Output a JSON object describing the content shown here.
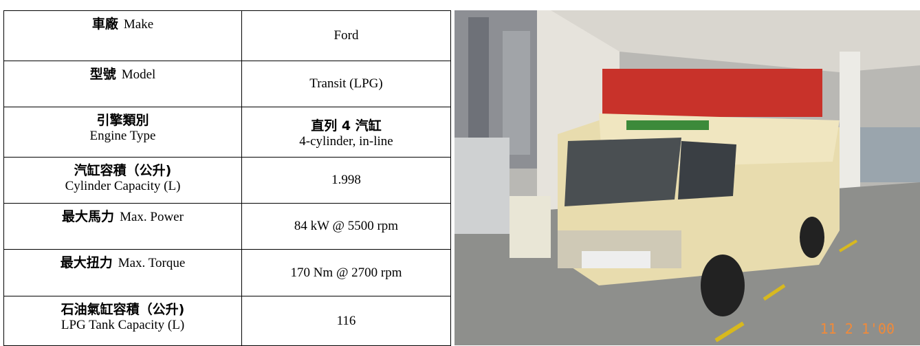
{
  "table": {
    "rows": [
      {
        "label": [
          [
            "車廠",
            "Make"
          ]
        ],
        "value": [
          "Ford"
        ]
      },
      {
        "label": [
          [
            "型號",
            "Model"
          ]
        ],
        "value": [
          "Transit (LPG)"
        ]
      },
      {
        "label": [
          [
            "引擎類別"
          ],
          [
            "Engine Type"
          ]
        ],
        "value": [
          "直列 4 汽缸",
          "4-cylinder, in-line"
        ]
      },
      {
        "label": [
          [
            "汽缸容積（公升)"
          ],
          [
            "Cylinder Capacity (L)"
          ]
        ],
        "value": [
          "1.998"
        ]
      },
      {
        "label": [
          [
            "最大馬力",
            "Max. Power"
          ]
        ],
        "value": [
          "84 kW @ 5500 rpm"
        ]
      },
      {
        "label": [
          [
            "最大扭力",
            "Max. Torque"
          ]
        ],
        "value": [
          "170 Nm @ 2700 rpm"
        ]
      },
      {
        "label": [
          [
            "石油氣缸容積（公升)"
          ],
          [
            "LPG Tank Capacity (L)"
          ]
        ],
        "value": [
          "116"
        ]
      }
    ]
  },
  "photo": {
    "timestamp": "11 2 1'00"
  }
}
